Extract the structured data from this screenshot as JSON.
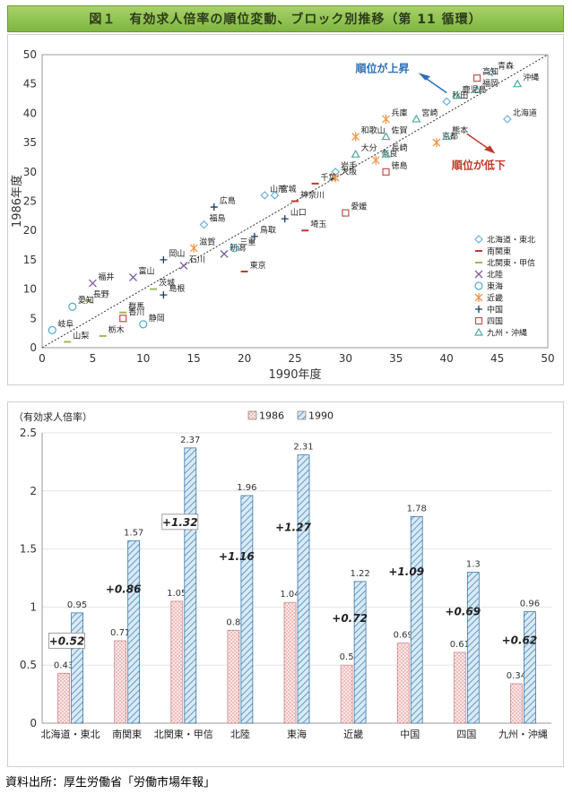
{
  "title": "図１　有効求人倍率の順位変動、ブロック別推移（第 11 循環）",
  "source": "資料出所：厚生労働省「労働市場年報」",
  "colors": {
    "hokkaido_tohoku": "#6fb0d8",
    "minami_kanto": "#c0392b",
    "kitakanto_koshin": "#9bbb59",
    "hokuriku": "#8064a2",
    "tokai": "#4bacc6",
    "kinki": "#f79646",
    "chugoku": "#1f3864",
    "shikoku": "#c0504d",
    "kyushu_okinawa": "#4bac9a",
    "bar1986": "#f2c4c4",
    "bar1990": "#8fb8d8"
  },
  "chart_data": [
    {
      "type": "scatter",
      "xlabel": "1990年度",
      "ylabel": "1986年度",
      "xlim": [
        0,
        50
      ],
      "ylim": [
        0,
        50
      ],
      "xticks": [
        "0",
        "5",
        "10",
        "15",
        "20",
        "25",
        "30",
        "35",
        "40",
        "45",
        "50"
      ],
      "yticks": [
        "0",
        "5",
        "10",
        "15",
        "20",
        "25",
        "30",
        "35",
        "40",
        "45",
        "50"
      ],
      "annotations": [
        "順位が上昇",
        "順位が低下"
      ],
      "legend_position": "right",
      "series": [
        {
          "key": "hokkaido_tohoku",
          "name": "北海道・東北",
          "marker": "diamond",
          "points": [
            {
              "label": "青森",
              "x": 44.5,
              "y": 47
            },
            {
              "label": "秋田",
              "x": 40,
              "y": 42
            },
            {
              "label": "岩手",
              "x": 29,
              "y": 30
            },
            {
              "label": "山形",
              "x": 22,
              "y": 26
            },
            {
              "label": "宮城",
              "x": 23,
              "y": 26
            },
            {
              "label": "福島",
              "x": 16,
              "y": 21
            },
            {
              "label": "北海道",
              "x": 46,
              "y": 39
            }
          ]
        },
        {
          "key": "minami_kanto",
          "name": "南関東",
          "marker": "dash",
          "points": [
            {
              "label": "神奈川",
              "x": 25,
              "y": 25
            },
            {
              "label": "千葉",
              "x": 27,
              "y": 28
            },
            {
              "label": "埼玉",
              "x": 26,
              "y": 20
            },
            {
              "label": "東京",
              "x": 20,
              "y": 13
            }
          ]
        },
        {
          "key": "kitakanto_koshin",
          "name": "北関東・甲信",
          "marker": "dash",
          "points": [
            {
              "label": "長野",
              "x": 4.5,
              "y": 8
            },
            {
              "label": "群馬",
              "x": 8,
              "y": 6
            },
            {
              "label": "栃木",
              "x": 6,
              "y": 2
            },
            {
              "label": "山梨",
              "x": 2.5,
              "y": 1
            },
            {
              "label": "茨城",
              "x": 11,
              "y": 10
            }
          ]
        },
        {
          "key": "hokuriku",
          "name": "北陸",
          "marker": "x",
          "points": [
            {
              "label": "福井",
              "x": 5,
              "y": 11
            },
            {
              "label": "富山",
              "x": 9,
              "y": 12
            },
            {
              "label": "石川",
              "x": 14,
              "y": 14
            },
            {
              "label": "新潟",
              "x": 18,
              "y": 16
            }
          ]
        },
        {
          "key": "tokai",
          "name": "東海",
          "marker": "circle",
          "points": [
            {
              "label": "愛知",
              "x": 3,
              "y": 7
            },
            {
              "label": "岐阜",
              "x": 1,
              "y": 3
            },
            {
              "label": "静岡",
              "x": 10,
              "y": 4
            },
            {
              "label": "三重",
              "x": 19,
              "y": 17
            }
          ]
        },
        {
          "key": "kinki",
          "name": "近畿",
          "marker": "asterisk",
          "points": [
            {
              "label": "兵庫",
              "x": 34,
              "y": 39
            },
            {
              "label": "和歌山",
              "x": 31,
              "y": 36
            },
            {
              "label": "京都",
              "x": 39,
              "y": 35
            },
            {
              "label": "大阪",
              "x": 29,
              "y": 29
            },
            {
              "label": "奈良",
              "x": 33,
              "y": 32
            },
            {
              "label": "滋賀",
              "x": 15,
              "y": 17
            }
          ]
        },
        {
          "key": "chugoku",
          "name": "中国",
          "marker": "plus",
          "points": [
            {
              "label": "広島",
              "x": 17,
              "y": 24
            },
            {
              "label": "山口",
              "x": 24,
              "y": 22
            },
            {
              "label": "鳥取",
              "x": 21,
              "y": 19
            },
            {
              "label": "岡山",
              "x": 12,
              "y": 15
            },
            {
              "label": "島根",
              "x": 12,
              "y": 9
            }
          ]
        },
        {
          "key": "shikoku",
          "name": "四国",
          "marker": "square",
          "points": [
            {
              "label": "高知",
              "x": 43,
              "y": 46
            },
            {
              "label": "徳島",
              "x": 34,
              "y": 30
            },
            {
              "label": "愛媛",
              "x": 30,
              "y": 23
            },
            {
              "label": "香川",
              "x": 8,
              "y": 5
            }
          ]
        },
        {
          "key": "kyushu_okinawa",
          "name": "九州・沖縄",
          "marker": "triangle",
          "points": [
            {
              "label": "沖縄",
              "x": 47,
              "y": 45
            },
            {
              "label": "福岡",
              "x": 43,
              "y": 44
            },
            {
              "label": "鹿児島",
              "x": 41,
              "y": 43
            },
            {
              "label": "宮崎",
              "x": 37,
              "y": 39
            },
            {
              "label": "佐賀",
              "x": 34,
              "y": 36
            },
            {
              "label": "熊本",
              "x": 40,
              "y": 36
            },
            {
              "label": "大分",
              "x": 31,
              "y": 33
            },
            {
              "label": "長崎",
              "x": 34,
              "y": 33
            }
          ]
        }
      ]
    },
    {
      "type": "bar",
      "unit_label": "（有効求人倍率）",
      "categories": [
        "北海道・東北",
        "南関東",
        "北関東・甲信",
        "北陸",
        "東海",
        "近畿",
        "中国",
        "四国",
        "九州・沖縄"
      ],
      "ylim": [
        0,
        2.5
      ],
      "yticks": [
        "0",
        "0.5",
        "1",
        "1.5",
        "2",
        "2.5"
      ],
      "legend_position": "top",
      "series": [
        {
          "name": "1986",
          "values": [
            0.43,
            0.71,
            1.05,
            0.8,
            1.04,
            0.5,
            0.69,
            0.61,
            0.34
          ],
          "labels": [
            "0.43",
            "0.71",
            "1.05",
            "0.8",
            "1.04",
            "0.5",
            "0.69",
            "0.61",
            "0.34"
          ]
        },
        {
          "name": "1990",
          "values": [
            0.95,
            1.57,
            2.37,
            1.96,
            2.31,
            1.22,
            1.78,
            1.3,
            0.96
          ],
          "labels": [
            "0.95",
            "1.57",
            "2.37",
            "1.96",
            "2.31",
            "1.22",
            "1.78",
            "1.3",
            "0.96"
          ]
        }
      ],
      "differences": [
        "+0.52",
        "+0.86",
        "+1.32",
        "+1.16",
        "+1.27",
        "+0.72",
        "+1.09",
        "+0.69",
        "+0.62"
      ],
      "boxed_differences": [
        0,
        2
      ]
    }
  ]
}
